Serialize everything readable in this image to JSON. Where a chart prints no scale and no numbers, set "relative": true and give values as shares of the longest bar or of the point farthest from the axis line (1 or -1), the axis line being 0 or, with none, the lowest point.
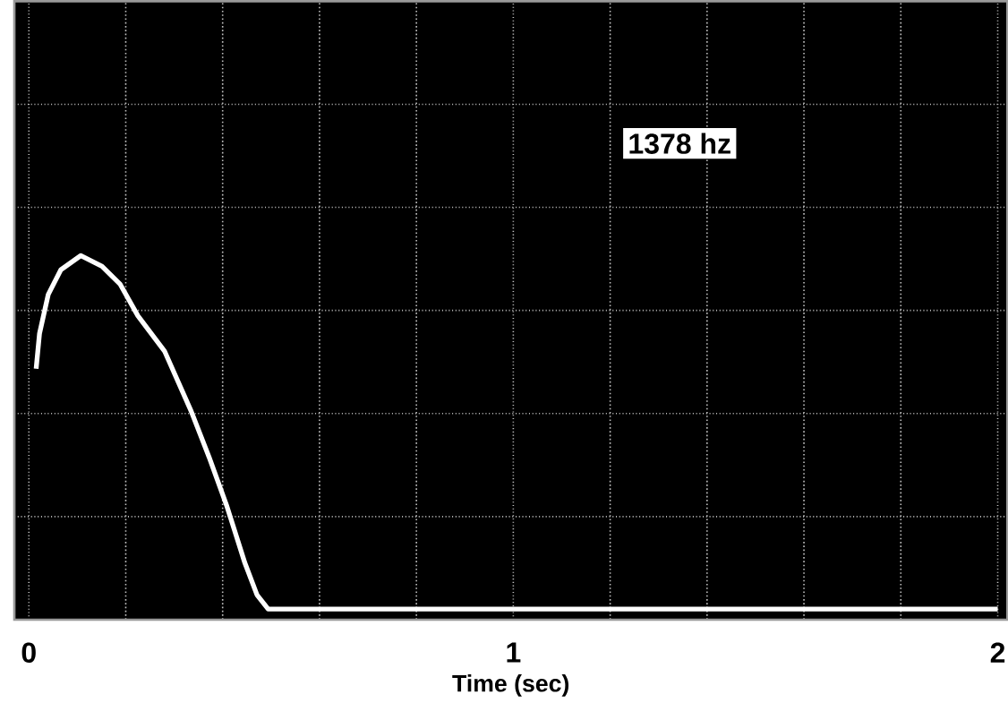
{
  "chart_data": {
    "type": "line",
    "relative": true,
    "xlabel": "Time (sec)",
    "x": [
      0.015,
      0.022,
      0.04,
      0.066,
      0.107,
      0.151,
      0.188,
      0.225,
      0.28,
      0.335,
      0.372,
      0.409,
      0.446,
      0.471,
      0.494,
      0.6,
      0.8,
      1.0,
      1.2,
      1.4,
      1.6,
      1.8,
      2.0
    ],
    "series": [
      {
        "color": "#ffffff",
        "values": [
          0.68,
          0.78,
          0.89,
          0.96,
          1,
          0.97,
          0.92,
          0.83,
          0.73,
          0.56,
          0.43,
          0.29,
          0.13,
          0.04,
          0,
          0,
          0,
          0,
          0,
          0,
          0,
          0,
          0
        ]
      }
    ],
    "xlim": [
      -0.03,
      2.02
    ],
    "xticks": [
      0,
      1,
      2
    ],
    "grid": true,
    "line_style": "solid",
    "marker": "none",
    "annotations": [
      "1378 hz"
    ]
  }
}
